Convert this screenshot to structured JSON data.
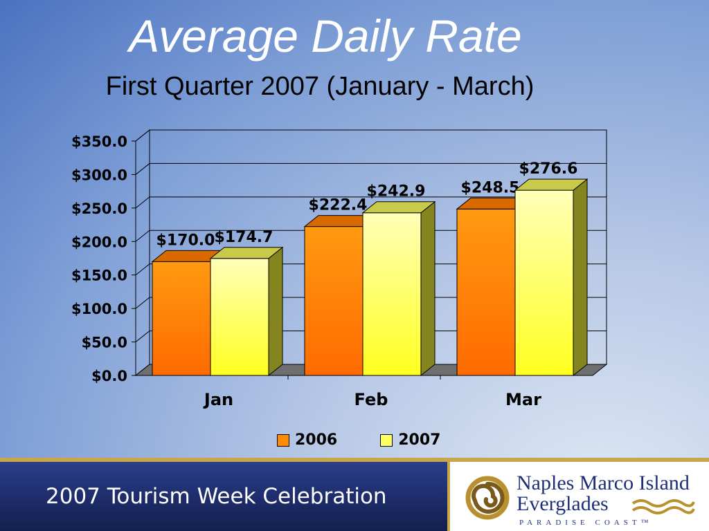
{
  "slide": {
    "title": "Average Daily Rate",
    "subtitle": "First Quarter 2007 (January - March)"
  },
  "chart_data": {
    "type": "bar",
    "style": "3d-clustered",
    "categories": [
      "Jan",
      "Feb",
      "Mar"
    ],
    "series": [
      {
        "name": "2006",
        "values": [
          170.0,
          222.4,
          248.5
        ],
        "labels": [
          "$170.0",
          "$222.4",
          "$248.5"
        ],
        "color": "#ff8a00"
      },
      {
        "name": "2007",
        "values": [
          174.7,
          242.9,
          276.6
        ],
        "labels": [
          "$174.7",
          "$242.9",
          "$276.6"
        ],
        "color": "#ffff66"
      }
    ],
    "yticks": [
      "$0.0",
      "$50.0",
      "$100.0",
      "$150.0",
      "$200.0",
      "$250.0",
      "$300.0",
      "$350.0"
    ],
    "ylim": [
      0,
      350
    ],
    "grid": true,
    "legend": "bottom"
  },
  "footer": {
    "event": "2007 Tourism Week Celebration",
    "logo_line1": "Naples Marco Island",
    "logo_line2": "Everglades",
    "logo_line3": "PARADISE COAST™"
  },
  "colors": {
    "bar_2006": "#ff8a00",
    "bar_2007": "#ffff66",
    "footer_gold": "#c8a64a",
    "footer_navy": "#1c2a66"
  }
}
